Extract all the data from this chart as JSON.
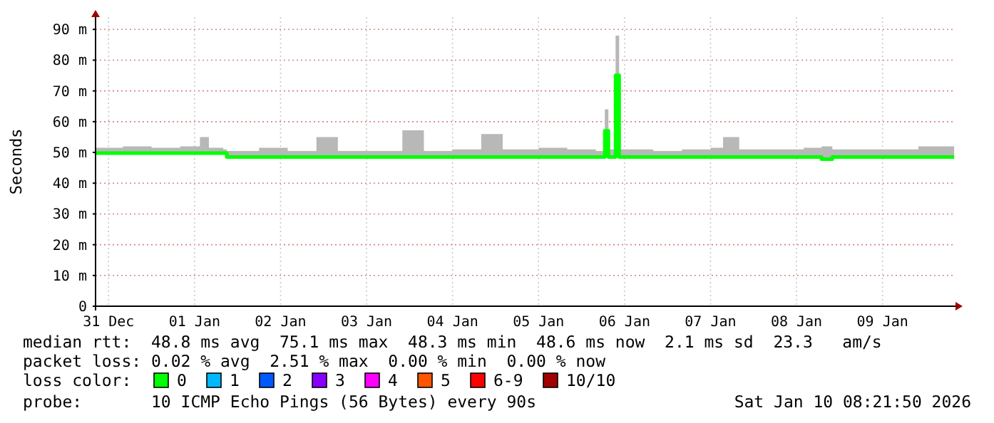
{
  "chart_data": {
    "type": "line",
    "ylabel": "Seconds",
    "legend_title": "loss color:",
    "legend": "bottom",
    "grid": true,
    "xlim": [
      "2025-12-31T08:22",
      "2026-01-10T08:22"
    ],
    "xticks": [
      {
        "value": "2025-12-31T12:00",
        "label": "31 Dec"
      },
      {
        "value": "2026-01-01T12:00",
        "label": "01 Jan"
      },
      {
        "value": "2026-01-02T12:00",
        "label": "02 Jan"
      },
      {
        "value": "2026-01-03T12:00",
        "label": "03 Jan"
      },
      {
        "value": "2026-01-04T12:00",
        "label": "04 Jan"
      },
      {
        "value": "2026-01-05T12:00",
        "label": "05 Jan"
      },
      {
        "value": "2026-01-06T12:00",
        "label": "06 Jan"
      },
      {
        "value": "2026-01-07T12:00",
        "label": "07 Jan"
      },
      {
        "value": "2026-01-08T12:00",
        "label": "08 Jan"
      },
      {
        "value": "2026-01-09T12:00",
        "label": "09 Jan"
      }
    ],
    "ylim": [
      0,
      94
    ],
    "yticks": [
      0,
      {
        "value": 10,
        "label": "10 m"
      },
      {
        "value": 20,
        "label": "20 m"
      },
      {
        "value": 30,
        "label": "30 m"
      },
      {
        "value": 40,
        "label": "40 m"
      },
      {
        "value": 50,
        "label": "50 m"
      },
      {
        "value": 60,
        "label": "60 m"
      },
      {
        "value": 70,
        "label": "70 m"
      },
      {
        "value": 80,
        "label": "80 m"
      },
      {
        "value": 90,
        "label": "90 m"
      }
    ],
    "x": [
      "2025-12-31T08:30",
      "2025-12-31T16:00",
      "2026-01-01T00:00",
      "2026-01-01T08:00",
      "2026-01-01T13:30",
      "2026-01-01T16:00",
      "2026-01-01T20:00",
      "2026-01-01T21:00",
      "2026-01-02T06:00",
      "2026-01-02T14:00",
      "2026-01-02T22:00",
      "2026-01-03T04:00",
      "2026-01-03T12:00",
      "2026-01-03T22:00",
      "2026-01-04T04:00",
      "2026-01-04T12:00",
      "2026-01-04T20:00",
      "2026-01-05T02:00",
      "2026-01-05T12:00",
      "2026-01-05T20:00",
      "2026-01-06T04:00",
      "2026-01-06T06:30",
      "2026-01-06T07:30",
      "2026-01-06T09:30",
      "2026-01-06T10:30",
      "2026-01-06T20:00",
      "2026-01-07T04:00",
      "2026-01-07T12:00",
      "2026-01-07T15:30",
      "2026-01-07T20:00",
      "2026-01-08T06:00",
      "2026-01-08T14:00",
      "2026-01-08T19:00",
      "2026-01-08T22:00",
      "2026-01-09T08:00",
      "2026-01-09T16:00",
      "2026-01-09T22:00",
      "2026-01-10T08:00"
    ],
    "series": [
      {
        "name": "0",
        "color": "#00ff00",
        "values": [
          49.8,
          49.8,
          49.8,
          49.8,
          49.8,
          49.8,
          49.8,
          48.5,
          48.5,
          48.5,
          48.5,
          48.5,
          48.5,
          48.5,
          48.5,
          48.5,
          48.5,
          48.5,
          48.5,
          48.5,
          48.5,
          57,
          48.5,
          75.1,
          48.5,
          48.5,
          48.5,
          48.5,
          48.5,
          48.5,
          48.5,
          48.5,
          47.8,
          48.5,
          48.5,
          48.5,
          48.5,
          48.5
        ],
        "lower": [
          49.8,
          49.8,
          49.8,
          49.8,
          49.8,
          49.8,
          49.8,
          48.5,
          48.5,
          48.5,
          48.5,
          48.5,
          48.5,
          48.5,
          48.5,
          48.5,
          48.5,
          48.5,
          48.5,
          48.5,
          48.5,
          57,
          48.5,
          75.1,
          48.5,
          48.5,
          48.5,
          48.5,
          48.5,
          48.5,
          48.5,
          48.5,
          47.8,
          48.5,
          48.5,
          48.5,
          48.5,
          48.5
        ],
        "upper": [
          51.5,
          52,
          51.5,
          52,
          55,
          51.5,
          51,
          50.5,
          51.5,
          50.5,
          55,
          50.5,
          50.5,
          57.2,
          50.5,
          51,
          56,
          51,
          51.5,
          51,
          50.5,
          64,
          51,
          88,
          51,
          50.5,
          51,
          51.5,
          55,
          51,
          51,
          51.5,
          52,
          51,
          51,
          51,
          52,
          51
        ]
      },
      {
        "name": "1",
        "color": "#00b8ff",
        "values": [
          null,
          null,
          null,
          null,
          null,
          null,
          null,
          null,
          null,
          null,
          null,
          null,
          null,
          null,
          null,
          null,
          null,
          null,
          null,
          null,
          null,
          null,
          null,
          null,
          null,
          null,
          null,
          null,
          null,
          null,
          null,
          null,
          null,
          null,
          null,
          null,
          null,
          null
        ]
      },
      {
        "name": "2",
        "color": "#0059ff",
        "values": [
          null,
          null,
          null,
          null,
          null,
          null,
          null,
          null,
          null,
          null,
          null,
          null,
          null,
          null,
          null,
          null,
          null,
          null,
          null,
          null,
          null,
          null,
          null,
          null,
          null,
          null,
          null,
          null,
          null,
          null,
          null,
          null,
          null,
          null,
          null,
          null,
          null,
          null
        ]
      },
      {
        "name": "3",
        "color": "#8800ff",
        "values": [
          null,
          null,
          null,
          null,
          null,
          null,
          null,
          null,
          null,
          null,
          null,
          null,
          null,
          null,
          null,
          null,
          null,
          null,
          null,
          null,
          null,
          null,
          null,
          null,
          null,
          null,
          null,
          null,
          null,
          null,
          null,
          null,
          null,
          null,
          null,
          null,
          null,
          null
        ]
      },
      {
        "name": "4",
        "color": "#ff00ff",
        "values": [
          null,
          null,
          null,
          null,
          null,
          null,
          null,
          null,
          null,
          null,
          null,
          null,
          null,
          null,
          null,
          null,
          null,
          null,
          null,
          null,
          null,
          null,
          null,
          null,
          null,
          null,
          null,
          null,
          null,
          null,
          null,
          null,
          null,
          null,
          null,
          null,
          null,
          null
        ]
      },
      {
        "name": "5",
        "color": "#ff5500",
        "values": [
          null,
          null,
          null,
          null,
          null,
          null,
          null,
          null,
          null,
          null,
          null,
          null,
          null,
          null,
          null,
          null,
          null,
          null,
          null,
          null,
          null,
          null,
          null,
          null,
          null,
          null,
          null,
          null,
          null,
          null,
          null,
          null,
          null,
          null,
          null,
          null,
          null,
          null
        ]
      },
      {
        "name": "6-9",
        "color": "#ff0000",
        "values": [
          null,
          null,
          null,
          null,
          null,
          null,
          null,
          null,
          null,
          null,
          null,
          null,
          null,
          null,
          null,
          null,
          null,
          null,
          null,
          null,
          null,
          null,
          null,
          null,
          null,
          null,
          null,
          null,
          null,
          null,
          null,
          null,
          null,
          null,
          null,
          null,
          null,
          null
        ]
      },
      {
        "name": "10/10",
        "color": "#a10000",
        "values": [
          null,
          null,
          null,
          null,
          null,
          null,
          null,
          null,
          null,
          null,
          null,
          null,
          null,
          null,
          null,
          null,
          null,
          null,
          null,
          null,
          null,
          null,
          null,
          null,
          null,
          null,
          null,
          null,
          null,
          null,
          null,
          null,
          null,
          null,
          null,
          null,
          null,
          null
        ]
      }
    ],
    "annotations": [
      "median rtt:  48.8 ms avg  75.1 ms max  48.3 ms min  48.6 ms now  2.1 ms sd  23.3   am/s",
      "packet loss: 0.02 % avg  2.51 % max  0.00 % min  0.00 % now",
      "probe:       10 ICMP Echo Pings (56 Bytes) every 90s",
      "Sat Jan 10 08:21:50 2026"
    ]
  }
}
